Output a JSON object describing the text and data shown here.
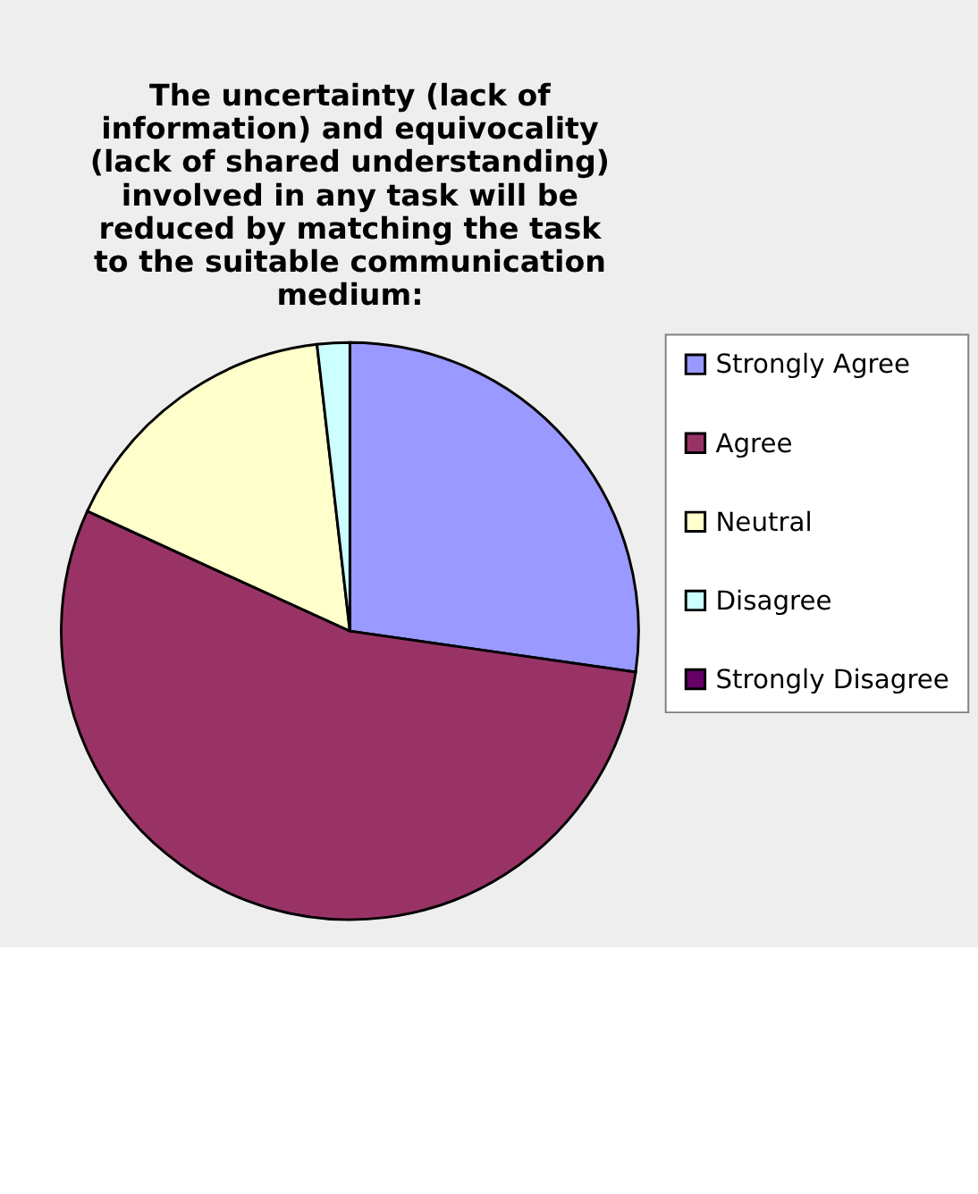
{
  "chart_data": {
    "type": "pie",
    "title": "The uncertainty (lack of information) and equivocality (lack of shared understanding) involved in any task will be reduced by matching the task to the suitable communication medium:",
    "categories": [
      "Strongly Agree",
      "Agree",
      "Neutral",
      "Disagree",
      "Strongly Disagree"
    ],
    "values": [
      27.27,
      54.55,
      16.36,
      1.82,
      0
    ],
    "colors": [
      "#9999ff",
      "#993366",
      "#ffffcc",
      "#ccffff",
      "#660066"
    ],
    "legend": "right"
  }
}
